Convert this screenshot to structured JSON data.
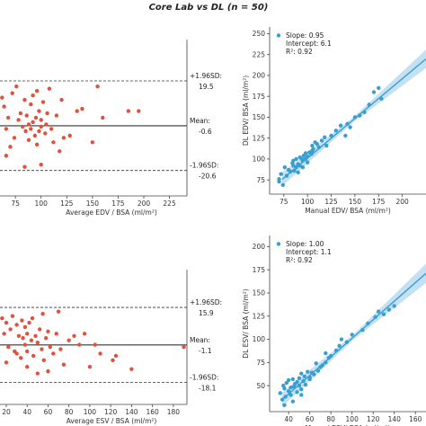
{
  "figure_title": "Core Lab vs DL (n = 50)",
  "chart_data": [
    {
      "type": "scatter",
      "panel": "bland-altman-edv",
      "xlabel": "Average EDV / BSA (ml/m²)",
      "ylabel": "",
      "xlim": [
        60,
        242
      ],
      "ylim": [
        -32,
        38
      ],
      "xticks": [
        75,
        100,
        125,
        150,
        175,
        200,
        225
      ],
      "xtick_labels": [
        "75",
        "100",
        "125",
        "150",
        "175",
        "200",
        "225"
      ],
      "color": "#e0523f",
      "lines": [
        {
          "name": "upper",
          "value": 19.5,
          "label_top": "+1.96SD:",
          "label_bottom": "19.5",
          "style": "dashed"
        },
        {
          "name": "mean",
          "value": -0.6,
          "label_top": "Mean:",
          "label_bottom": "-0.6",
          "style": "solid"
        },
        {
          "name": "lower",
          "value": -20.6,
          "label_top": "-1.96SD:",
          "label_bottom": "-20.6",
          "style": "dashed"
        }
      ],
      "x": [
        62,
        64,
        66,
        68,
        70,
        72,
        74,
        76,
        78,
        80,
        82,
        84,
        85,
        86,
        88,
        88,
        90,
        90,
        92,
        92,
        94,
        95,
        96,
        96,
        98,
        98,
        100,
        100,
        102,
        104,
        105,
        106,
        108,
        110,
        112,
        115,
        118,
        120,
        122,
        128,
        135,
        140,
        150,
        155,
        160,
        185,
        195,
        66,
        84,
        100
      ],
      "y": [
        12,
        8,
        -2,
        3,
        -10,
        14,
        -6,
        17,
        2,
        5,
        -1,
        11,
        -3,
        4,
        -7,
        0,
        9,
        -2,
        13,
        1,
        -5,
        3,
        15,
        -9,
        6,
        -3,
        2,
        -1,
        10,
        -4,
        0,
        5,
        16,
        -2,
        -8,
        4,
        -12,
        11,
        -6,
        -5,
        6,
        7,
        -8,
        17,
        3,
        6,
        6,
        -14,
        -19,
        -18
      ]
    },
    {
      "type": "scatter",
      "panel": "regression-edv",
      "xlabel": "Manual EDV/ BSA (ml/m²)",
      "ylabel": "DL EDV/ BSA (ml/m²)",
      "xlim": [
        60,
        225
      ],
      "ylim": [
        58,
        258
      ],
      "xticks": [
        75,
        100,
        125,
        150,
        175,
        200
      ],
      "xtick_labels": [
        "75",
        "100",
        "125",
        "150",
        "175",
        "200"
      ],
      "yticks": [
        75,
        100,
        125,
        150,
        175,
        200,
        225,
        250
      ],
      "ytick_labels": [
        "75",
        "100",
        "125",
        "150",
        "175",
        "200",
        "225",
        "250"
      ],
      "color": "#3a9ed0",
      "legend_location": "top-left",
      "legend": [
        "Slope: 0.95",
        "Intercept: 6.1",
        "R²: 0.92"
      ],
      "fit": {
        "slope": 0.95,
        "intercept": 6.1
      },
      "x": [
        70,
        72,
        74,
        76,
        78,
        80,
        82,
        84,
        85,
        86,
        88,
        88,
        90,
        90,
        92,
        92,
        94,
        95,
        96,
        98,
        98,
        100,
        100,
        102,
        104,
        105,
        106,
        108,
        110,
        112,
        115,
        118,
        120,
        125,
        130,
        135,
        140,
        142,
        150,
        155,
        160,
        165,
        170,
        175,
        178,
        70,
        85,
        95,
        105,
        145
      ],
      "y": [
        73,
        82,
        69,
        90,
        80,
        87,
        85,
        95,
        98,
        86,
        90,
        100,
        94,
        84,
        92,
        102,
        100,
        98,
        104,
        100,
        107,
        96,
        103,
        108,
        106,
        116,
        112,
        120,
        118,
        114,
        122,
        126,
        116,
        128,
        134,
        140,
        128,
        142,
        150,
        152,
        156,
        165,
        180,
        185,
        172,
        76,
        92,
        90,
        110,
        138
      ]
    },
    {
      "type": "scatter",
      "panel": "bland-altman-esv",
      "xlabel": "Average ESV / BSA (ml/m²)",
      "ylabel": "",
      "xlim": [
        14,
        193
      ],
      "ylim": [
        -28,
        33
      ],
      "xticks": [
        20,
        40,
        60,
        80,
        100,
        120,
        140,
        160,
        180
      ],
      "xtick_labels": [
        "20",
        "40",
        "60",
        "80",
        "100",
        "120",
        "140",
        "160",
        "180"
      ],
      "color": "#e0523f",
      "lines": [
        {
          "name": "upper",
          "value": 15.9,
          "label_top": "+1.96SD:",
          "label_bottom": "15.9",
          "style": "dashed"
        },
        {
          "name": "mean",
          "value": -1.1,
          "label_top": "Mean:",
          "label_bottom": "-1.1",
          "style": "solid"
        },
        {
          "name": "lower",
          "value": -18.1,
          "label_top": "-1.96SD:",
          "label_bottom": "-18.1",
          "style": "dashed"
        }
      ],
      "x": [
        16,
        18,
        20,
        22,
        24,
        26,
        28,
        30,
        32,
        34,
        35,
        36,
        38,
        38,
        40,
        40,
        42,
        44,
        45,
        46,
        48,
        50,
        52,
        54,
        55,
        56,
        58,
        60,
        62,
        65,
        68,
        70,
        72,
        75,
        80,
        85,
        90,
        95,
        100,
        105,
        110,
        122,
        125,
        140,
        190,
        20,
        30,
        40,
        50,
        60
      ],
      "y": [
        11,
        4,
        9,
        -2,
        6,
        12,
        -4,
        8,
        3,
        -7,
        10,
        2,
        7,
        -1,
        4,
        -4,
        9,
        1,
        11,
        -6,
        3,
        0,
        6,
        -3,
        13,
        -8,
        2,
        5,
        -2,
        -5,
        4,
        14,
        -3,
        -10,
        1,
        3,
        -1,
        4,
        -11,
        -1,
        -5,
        -8,
        -6,
        -12,
        -2,
        -9,
        -5,
        -11,
        -14,
        -13
      ]
    },
    {
      "type": "scatter",
      "panel": "regression-esv",
      "xlabel": "Manual ESV/ BSA (ml/m²)",
      "ylabel": "DL ESV/ BSA (ml/m²)",
      "xlim": [
        22,
        170
      ],
      "ylim": [
        22,
        212
      ],
      "xticks": [
        40,
        60,
        80,
        100,
        120,
        140,
        160
      ],
      "xtick_labels": [
        "40",
        "60",
        "80",
        "100",
        "120",
        "140",
        "160"
      ],
      "yticks": [
        50,
        75,
        100,
        125,
        150,
        175,
        200
      ],
      "ytick_labels": [
        "50",
        "75",
        "100",
        "125",
        "150",
        "175",
        "200"
      ],
      "color": "#3a9ed0",
      "legend_location": "top-left",
      "legend": [
        "Slope: 1.00",
        "Intercept: 1.1",
        "R²: 0.92"
      ],
      "fit": {
        "slope": 1.0,
        "intercept": 1.1
      },
      "x": [
        32,
        34,
        35,
        36,
        37,
        38,
        40,
        40,
        42,
        42,
        44,
        45,
        46,
        48,
        48,
        50,
        50,
        52,
        52,
        54,
        55,
        56,
        58,
        60,
        62,
        64,
        66,
        68,
        70,
        72,
        75,
        78,
        80,
        85,
        88,
        90,
        95,
        100,
        110,
        115,
        122,
        125,
        130,
        135,
        140,
        36,
        44,
        52,
        60,
        75
      ],
      "y": [
        42,
        35,
        50,
        47,
        38,
        53,
        44,
        56,
        48,
        40,
        57,
        49,
        52,
        54,
        43,
        58,
        50,
        63,
        46,
        55,
        60,
        51,
        65,
        59,
        64,
        62,
        74,
        66,
        70,
        72,
        75,
        80,
        82,
        88,
        93,
        100,
        97,
        105,
        110,
        117,
        124,
        130,
        127,
        132,
        136,
        29,
        33,
        40,
        57,
        85
      ]
    }
  ]
}
